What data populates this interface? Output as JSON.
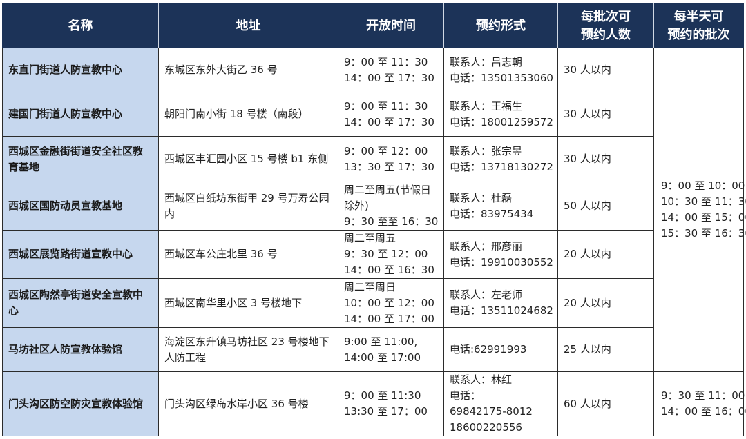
{
  "headers": [
    "名称",
    "地址",
    "开放时间",
    "预约形式",
    "每批次可\n预约人数",
    "每半天可\n预约的批次"
  ],
  "rows": [
    {
      "name": "东直门街道人防宣教中心",
      "address": "东城区东外大街乙 36 号",
      "hours": [
        "9：00 至 11：30",
        "14：00 至 17：30"
      ],
      "booking": [
        "联系人：吕志朝",
        "电话：13501353060"
      ],
      "capacity": "30 人以内"
    },
    {
      "name": "建国门街道人防宣教中心",
      "address": "朝阳门南小街 18 号楼（南段）",
      "hours": [
        "9：00 至 11：30",
        "14：00 至 17：30"
      ],
      "booking": [
        "联系人：王福生",
        "电话：18001259572"
      ],
      "capacity": "30 人以内"
    },
    {
      "name": "西城区金融街街道安全社区教育基地",
      "address": "西城区丰汇园小区 15 号楼 b1 东侧",
      "hours": [
        "9：00 至 12：00",
        "13：30 至 17：30"
      ],
      "booking": [
        "联系人：张宗昱",
        "电话：13718130272"
      ],
      "capacity": "30 人以内"
    },
    {
      "name": "西城区国防动员宣教基地",
      "address": "西城区白纸坊东街甲 29 号万寿公园内",
      "hours": [
        "周二至周五(节假日除外)",
        "9：30 至至 16：30"
      ],
      "booking": [
        "联系人：杜磊",
        "电话：83975434"
      ],
      "capacity": "50 人以内"
    },
    {
      "name": "西城区展览路街道宣教中心",
      "address": "西城区车公庄北里 36 号",
      "hours": [
        "周二至周五",
        "9：30 至 12：00",
        "14：00 至 16：30"
      ],
      "booking": [
        "联系人：邢彦丽",
        "电话：19910030552"
      ],
      "capacity": "20 人以内"
    },
    {
      "name": "西城区陶然亭街道安全宣教中心",
      "address": "西城区南华里小区 3 号楼地下",
      "hours": [
        "周二至周日",
        "10：00 至 12：00",
        "14：00 至 17：00"
      ],
      "booking": [
        "联系人：左老师",
        "电话：13511024682"
      ],
      "capacity": "20 人以内"
    },
    {
      "name": "马坊社区人防宣教体验馆",
      "address": "海淀区东升镇马坊社区 23 号楼地下人防工程",
      "hours": [
        "9:00 至 11:00,",
        "14:00 至 17:00"
      ],
      "booking": [
        "电话:62991993"
      ],
      "capacity": "25 人以内"
    },
    {
      "name": "门头沟区防空防灾宣教体验馆",
      "address": "门头沟区绿岛水岸小区 36 号楼",
      "hours": [
        "9：00 至 11:30",
        "13:30 至 17：00"
      ],
      "booking": [
        "联系人：林红",
        "电话：",
        "69842175-8012",
        "18600220556"
      ],
      "capacity": "60 人以内"
    }
  ],
  "batches_shared": [
    "9：00 至 10：00",
    "10：30 至 11：30",
    "14：00 至 15：00",
    "15：30 至 16：30"
  ],
  "batches_last": [
    "9：30 至 11：00",
    "14：00 至 16：00"
  ],
  "colors": {
    "header_bg": "#1c3358",
    "name_col_bg": "#c6d7ee"
  }
}
